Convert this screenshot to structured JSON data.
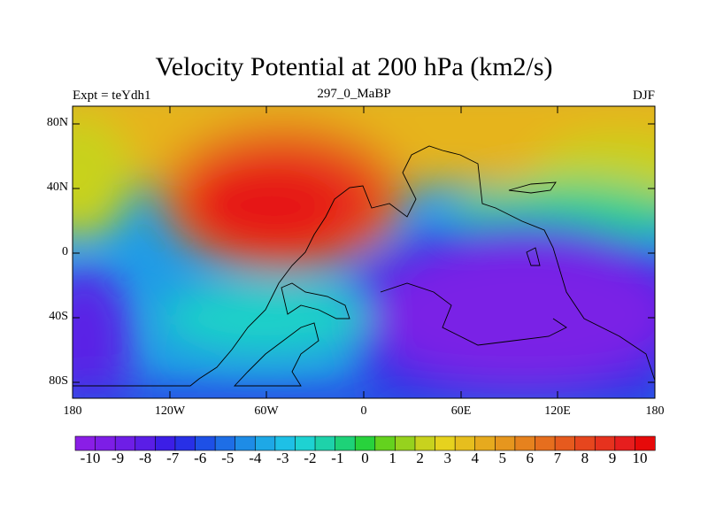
{
  "title": "Velocity Potential at 200 hPa (km2/s)",
  "subtitle_left": "Expt = teYdh1",
  "subtitle_center": "297_0_MaBP",
  "subtitle_right": "DJF",
  "y_ticks": [
    "80N",
    "40N",
    "0",
    "40S",
    "80S"
  ],
  "x_ticks": [
    "180",
    "120W",
    "60W",
    "0",
    "60E",
    "120E",
    "180"
  ],
  "colorbar_labels": [
    "-10",
    "-9",
    "-8",
    "-7",
    "-6",
    "-5",
    "-4",
    "-3",
    "-2",
    "-1",
    "0",
    "1",
    "2",
    "3",
    "4",
    "5",
    "6",
    "7",
    "8",
    "9",
    "10"
  ],
  "colorbar_colors": [
    "#8a1ee6",
    "#7d1ee6",
    "#6e1ee6",
    "#5a1ee6",
    "#3c1ee6",
    "#2830e6",
    "#1e50e6",
    "#1e6ee6",
    "#1e8ce6",
    "#1ea8e6",
    "#1ec0e6",
    "#1ed2d2",
    "#1ed2aa",
    "#1ed278",
    "#28d23c",
    "#64d21e",
    "#96d21e",
    "#c8d21e",
    "#e6d21e",
    "#e6be1e",
    "#e6aa1e",
    "#e6961e",
    "#e6821e",
    "#e66e1e",
    "#e65a1e",
    "#e6461e",
    "#e6321e",
    "#e61e1e",
    "#e60a0a"
  ],
  "map_colors": {
    "strong_neg": "#7a22e6",
    "neg": "#3a2ce6",
    "mid_neg": "#1e6ee6",
    "near_zero": "#1ec0e6",
    "pos_low": "#28d28c",
    "pos_mid": "#d2d21e",
    "pos_high": "#e6a01e",
    "strong_pos": "#e61e1e"
  }
}
